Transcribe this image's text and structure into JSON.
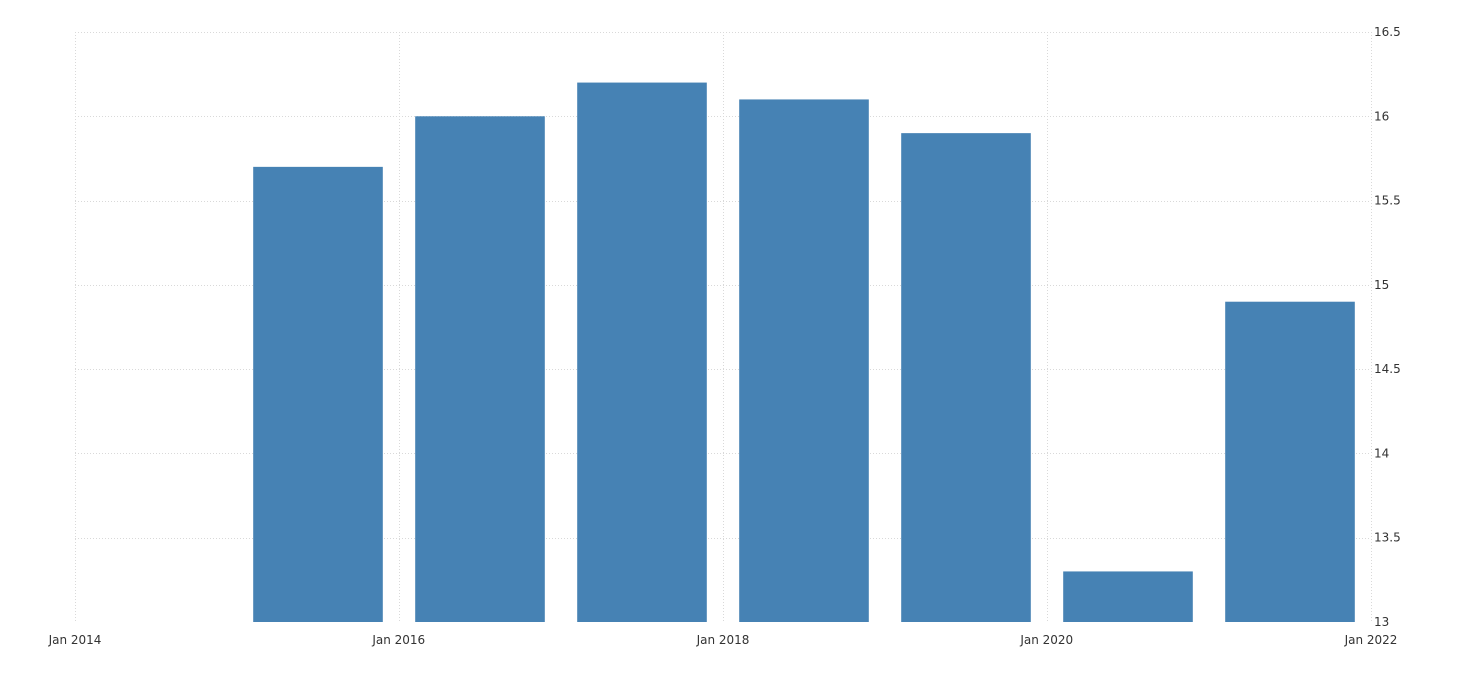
{
  "chart_data": {
    "type": "bar",
    "title": "",
    "xlabel": "",
    "ylabel": "",
    "x_axis": {
      "type": "date",
      "range": [
        "2014-01-01",
        "2022-01-01"
      ],
      "ticks": [
        {
          "date": "2014-01-01",
          "label": "Jan 2014"
        },
        {
          "date": "2016-01-01",
          "label": "Jan 2016"
        },
        {
          "date": "2018-01-01",
          "label": "Jan 2018"
        },
        {
          "date": "2020-01-01",
          "label": "Jan 2020"
        },
        {
          "date": "2022-01-01",
          "label": "Jan 2022"
        }
      ]
    },
    "y_axis": {
      "position": "right",
      "range": [
        13,
        16.5
      ],
      "ticks": [
        13,
        13.5,
        14,
        14.5,
        15,
        15.5,
        16,
        16.5
      ],
      "tick_labels": [
        "13",
        "13.5",
        "14",
        "14.5",
        "15",
        "15.5",
        "16",
        "16.5"
      ]
    },
    "grid": true,
    "legend": "none",
    "bar_color": "#4682b4",
    "bars": [
      {
        "period": "2015",
        "value": 15.7
      },
      {
        "period": "2016",
        "value": 16.0
      },
      {
        "period": "2017",
        "value": 16.2
      },
      {
        "period": "2018",
        "value": 16.1
      },
      {
        "period": "2019",
        "value": 15.9
      },
      {
        "period": "2020",
        "value": 13.3
      },
      {
        "period": "2021",
        "value": 14.9
      }
    ]
  }
}
